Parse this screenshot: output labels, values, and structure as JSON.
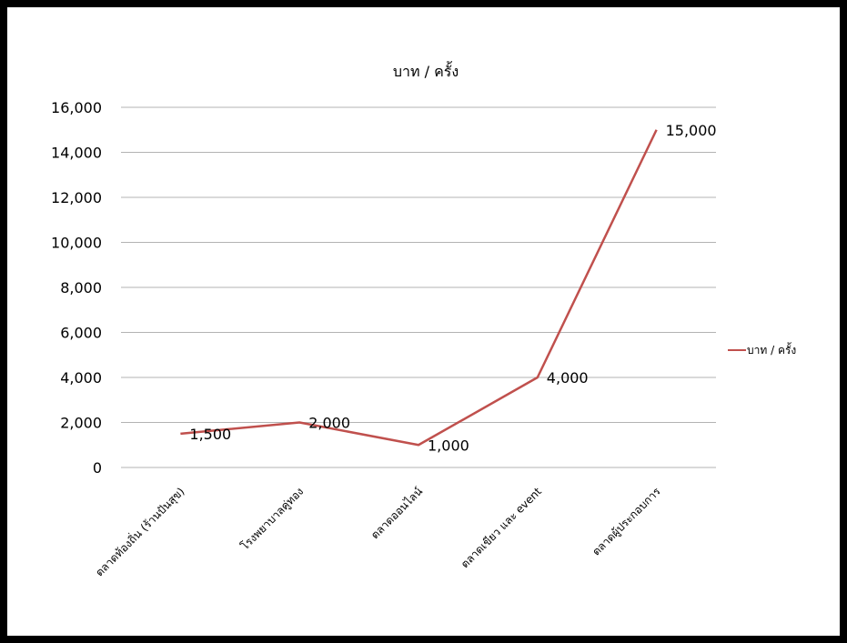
{
  "chart_data": {
    "type": "line",
    "title": "บาท / ครั้ง",
    "categories": [
      "ตลาดท้องถิ่น (ร้านปันสุข)",
      "โรงพยาบาลคู่ทอง",
      "ตลาดออนไลน์",
      "ตลาดเขียว และ event",
      "ตลาดผู้ประกอบการ"
    ],
    "series": [
      {
        "name": "บาท / ครั้ง",
        "values": [
          1500,
          2000,
          1000,
          4000,
          15000
        ],
        "color": "#c0504d"
      }
    ],
    "data_labels": [
      "1,500",
      "2,000",
      "1,000",
      "4,000",
      "15,000"
    ],
    "ylim": [
      0,
      16000
    ],
    "yticks": [
      "0",
      "2,000",
      "4,000",
      "6,000",
      "8,000",
      "10,000",
      "12,000",
      "14,000",
      "16,000"
    ],
    "grid": true,
    "gridline_color": "#b3b3b3",
    "legend_position": "right"
  }
}
